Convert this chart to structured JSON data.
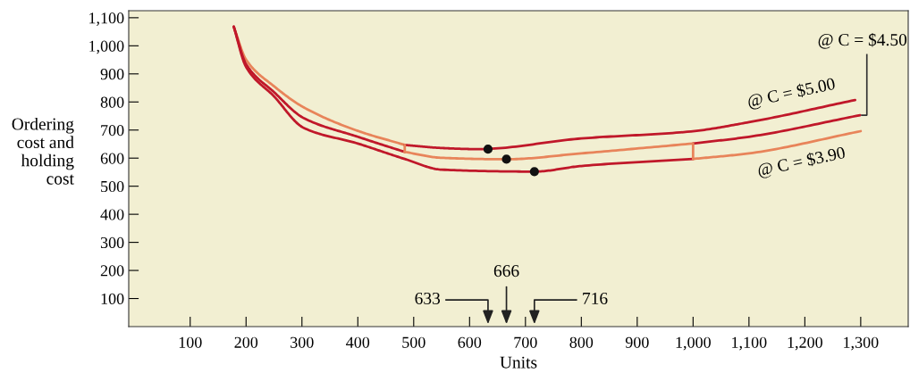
{
  "chart_data": {
    "type": "line",
    "xlabel": "Units",
    "ylabel": "Ordering\ncost and\nholding\ncost",
    "xlim": [
      -10,
      1385
    ],
    "ylim": [
      0,
      1125
    ],
    "xticks": [
      100,
      200,
      300,
      400,
      500,
      600,
      700,
      800,
      900,
      {
        "value": 1000,
        "label": "1,000"
      },
      {
        "value": 1100,
        "label": "1,100"
      },
      {
        "value": 1200,
        "label": "1,200"
      },
      {
        "value": 1300,
        "label": "1,300"
      }
    ],
    "yticks": [
      100,
      200,
      300,
      400,
      500,
      600,
      700,
      800,
      900,
      {
        "value": 1000,
        "label": "1,000"
      },
      {
        "value": 1100,
        "label": "1,100"
      }
    ],
    "grid": false,
    "legend": false,
    "line_style": "solid",
    "series": [
      {
        "color": "#e8845a",
        "x": [
          178,
          200,
          250,
          303,
          400,
          484
        ],
        "values": [
          1068,
          951,
          856,
          781,
          697,
          647
        ]
      },
      {
        "color": "#c0182a",
        "x": [
          484,
          550,
          615,
          800,
          996,
          1100,
          1290
        ],
        "values": [
          647,
          636,
          632,
          670,
          695,
          728,
          807
        ]
      },
      {
        "color": "#c0182a",
        "x": [
          178,
          200,
          250,
          303,
          400,
          484
        ],
        "values": [
          1068,
          935,
          835,
          743,
          676,
          622
        ]
      },
      {
        "color": "#e8845a",
        "x": [
          484,
          550,
          666,
          800,
          1000
        ],
        "values": [
          622,
          601,
          596,
          617,
          652
        ]
      },
      {
        "color": "#c0182a",
        "x": [
          1000,
          1100,
          1299
        ],
        "values": [
          652,
          676,
          753
        ]
      },
      {
        "color": "#c0182a",
        "x": [
          178,
          200,
          250,
          303,
          400,
          484,
          550,
          716,
          800,
          1000
        ],
        "values": [
          1068,
          925,
          820,
          708,
          652,
          597,
          559,
          552,
          572,
          597
        ]
      },
      {
        "color": "#e8845a",
        "x": [
          1000,
          1100,
          1300
        ],
        "values": [
          597,
          617,
          696
        ]
      },
      {
        "color": "#e8845a",
        "x": [
          484,
          484
        ],
        "values": [
          622,
          647
        ]
      },
      {
        "color": "#e8845a",
        "x": [
          1000,
          1000
        ],
        "values": [
          597,
          652
        ]
      },
      {
        "type": "scatter",
        "marker": "circle",
        "color": "#111111",
        "x": [
          633,
          666,
          716
        ],
        "values": [
          632,
          596,
          552
        ]
      }
    ],
    "annotations": [
      {
        "text": "@ C = $5.00",
        "x": 1176,
        "y": 758
      },
      {
        "text": "@ C = $4.50",
        "x": 1299,
        "y": 753
      },
      {
        "text": "@ C = $3.90",
        "x": 1194,
        "y": 654
      },
      "633",
      "666",
      "716"
    ]
  }
}
